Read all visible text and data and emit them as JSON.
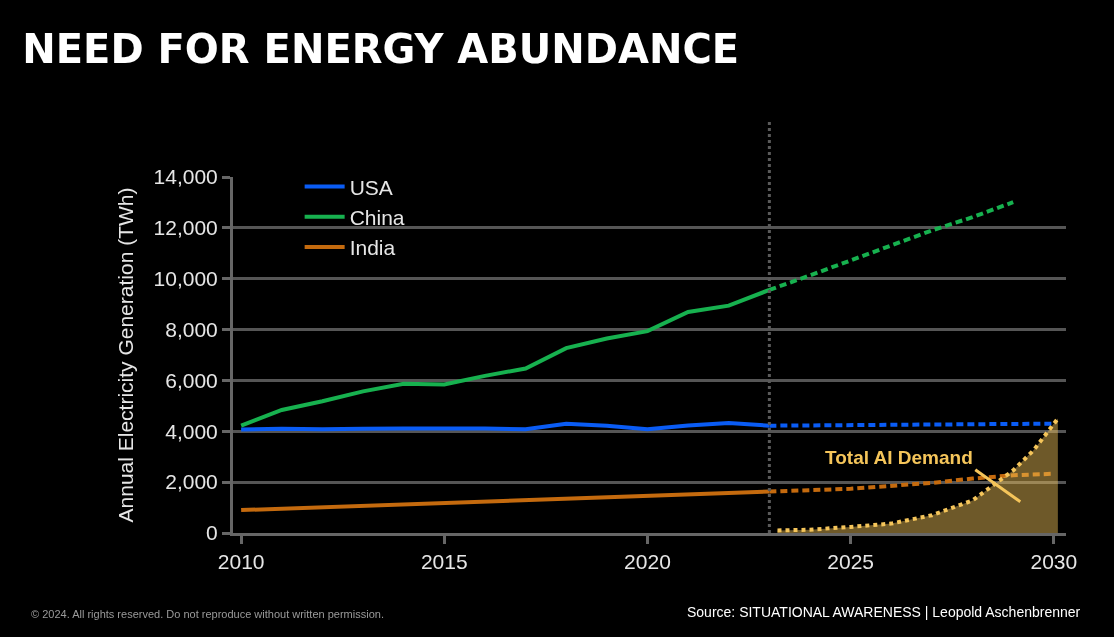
{
  "chart_data": {
    "type": "line",
    "title": "NEED FOR ENERGY ABUNDANCE",
    "ylabel": "Annual Electricity Generation (TWh)",
    "xlim": [
      2009.8,
      2030.3
    ],
    "xticks": [
      2010,
      2015,
      2020,
      2025,
      2030
    ],
    "ylim": [
      0,
      14000
    ],
    "yticks": [
      0,
      {
        "value": 2000,
        "label": "2,000"
      },
      {
        "value": 4000,
        "label": "4,000"
      },
      {
        "value": 6000,
        "label": "6,000"
      },
      {
        "value": 8000,
        "label": "8,000"
      },
      {
        "value": 10000,
        "label": "10,000"
      },
      {
        "value": 12000,
        "label": "12,000"
      },
      {
        "value": 14000,
        "label": "14,000"
      }
    ],
    "grid": "y",
    "legend": "top left",
    "marker": "none",
    "series": [
      {
        "name": "USA",
        "color": "#0a5cf5",
        "line_style": "solid",
        "x": [
          2010,
          2011,
          2012,
          2013,
          2014,
          2015,
          2016,
          2017,
          2018,
          2019,
          2020,
          2021,
          2022,
          2023
        ],
        "values": [
          4070,
          4100,
          4080,
          4100,
          4110,
          4110,
          4110,
          4080,
          4300,
          4220,
          4080,
          4230,
          4330,
          4220
        ]
      },
      {
        "name": "China",
        "color": "#17b14f",
        "line_style": "solid",
        "x": [
          2010,
          2011,
          2012,
          2013,
          2014,
          2015,
          2016,
          2017,
          2018,
          2019,
          2020,
          2021,
          2022,
          2023
        ],
        "values": [
          4220,
          4840,
          5180,
          5570,
          5870,
          5840,
          6180,
          6470,
          7270,
          7650,
          7940,
          8690,
          8940,
          9560
        ]
      },
      {
        "name": "India",
        "color": "#c46a0e",
        "line_style": "solid",
        "x": [
          2010,
          2023
        ],
        "values": [
          900,
          1630
        ]
      },
      {
        "color": "#0a5cf5",
        "line_style": "dashed",
        "x": [
          2023,
          2030
        ],
        "values": [
          4220,
          4300
        ]
      },
      {
        "color": "#17b14f",
        "line_style": "dashed",
        "x": [
          2023,
          2024,
          2025,
          2026,
          2027,
          2028,
          2029
        ],
        "values": [
          9560,
          10130,
          10720,
          11310,
          11900,
          12420,
          13010
        ]
      },
      {
        "color": "#c46a0e",
        "line_style": "dashed",
        "x": [
          2023,
          2025,
          2027,
          2028,
          2029,
          2030
        ],
        "values": [
          1630,
          1740,
          1970,
          2140,
          2270,
          2330
        ]
      },
      {
        "type": "area",
        "name": "Total AI Demand",
        "color": "#f5c55a",
        "line_style": "dotted",
        "x": [
          2023.2,
          2024,
          2025,
          2026,
          2027,
          2028,
          2029,
          2029.5,
          2030.1
        ],
        "values": [
          100,
          130,
          240,
          370,
          700,
          1280,
          2460,
          3250,
          4500
        ]
      }
    ],
    "ref_lines": [
      {
        "axis": "x",
        "value": 2023,
        "color": "#5a5a5a",
        "line_style": "dotted"
      }
    ],
    "annotations": [
      "© 2024. All rights reserved. Do not reproduce without written permission.",
      "Source: SITUATIONAL AWARENESS | Leopold Aschenbrenner"
    ]
  }
}
